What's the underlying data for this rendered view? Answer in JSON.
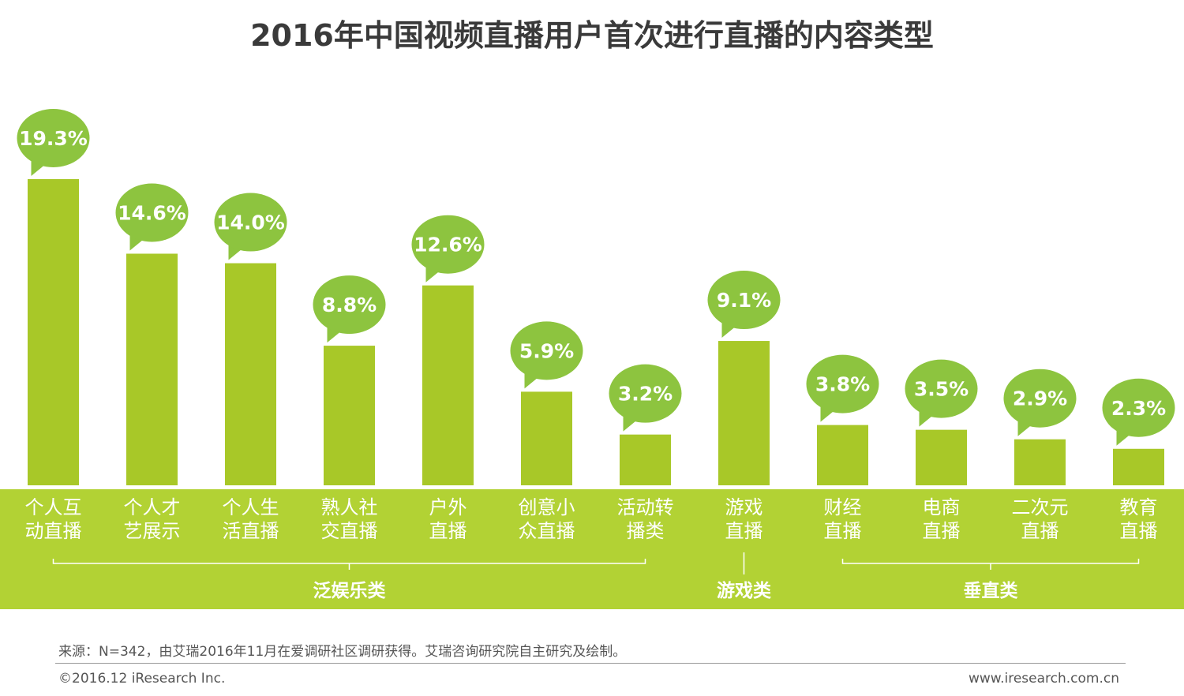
{
  "chart_data": {
    "type": "bar",
    "title": "2016年中国视频直播用户首次进行直播的内容类型",
    "categories": [
      [
        "个人互",
        "动直播"
      ],
      [
        "个人才",
        "艺展示"
      ],
      [
        "个人生",
        "活直播"
      ],
      [
        "熟人社",
        "交直播"
      ],
      [
        "户外",
        "直播"
      ],
      [
        "创意小",
        "众直播"
      ],
      [
        "活动转",
        "播类"
      ],
      [
        "游戏",
        "直播"
      ],
      [
        "财经",
        "直播"
      ],
      [
        "电商",
        "直播"
      ],
      [
        "二次元",
        "直播"
      ],
      [
        "教育",
        "直播"
      ]
    ],
    "values": [
      19.3,
      14.6,
      14.0,
      8.8,
      12.6,
      5.9,
      3.2,
      9.1,
      3.8,
      3.5,
      2.9,
      2.3
    ],
    "value_labels": [
      "19.3%",
      "14.6%",
      "14.0%",
      "8.8%",
      "12.6%",
      "5.9%",
      "3.2%",
      "9.1%",
      "3.8%",
      "3.5%",
      "2.9%",
      "2.3%"
    ],
    "groups": [
      {
        "label": "泛娱乐类",
        "start": 0,
        "end": 6
      },
      {
        "label": "游戏类",
        "start": 7,
        "end": 7
      },
      {
        "label": "垂直类",
        "start": 8,
        "end": 11
      }
    ],
    "colors": {
      "bar": "#a8c828",
      "band": "#b2d234",
      "bubble": "#8dc43f"
    }
  },
  "footer": {
    "source": "来源：N=342，由艾瑞2016年11月在爱调研社区调研获得。艾瑞咨询研究院自主研究及绘制。",
    "copyright": "©2016.12 iResearch Inc.",
    "website": "www.iresearch.com.cn"
  }
}
